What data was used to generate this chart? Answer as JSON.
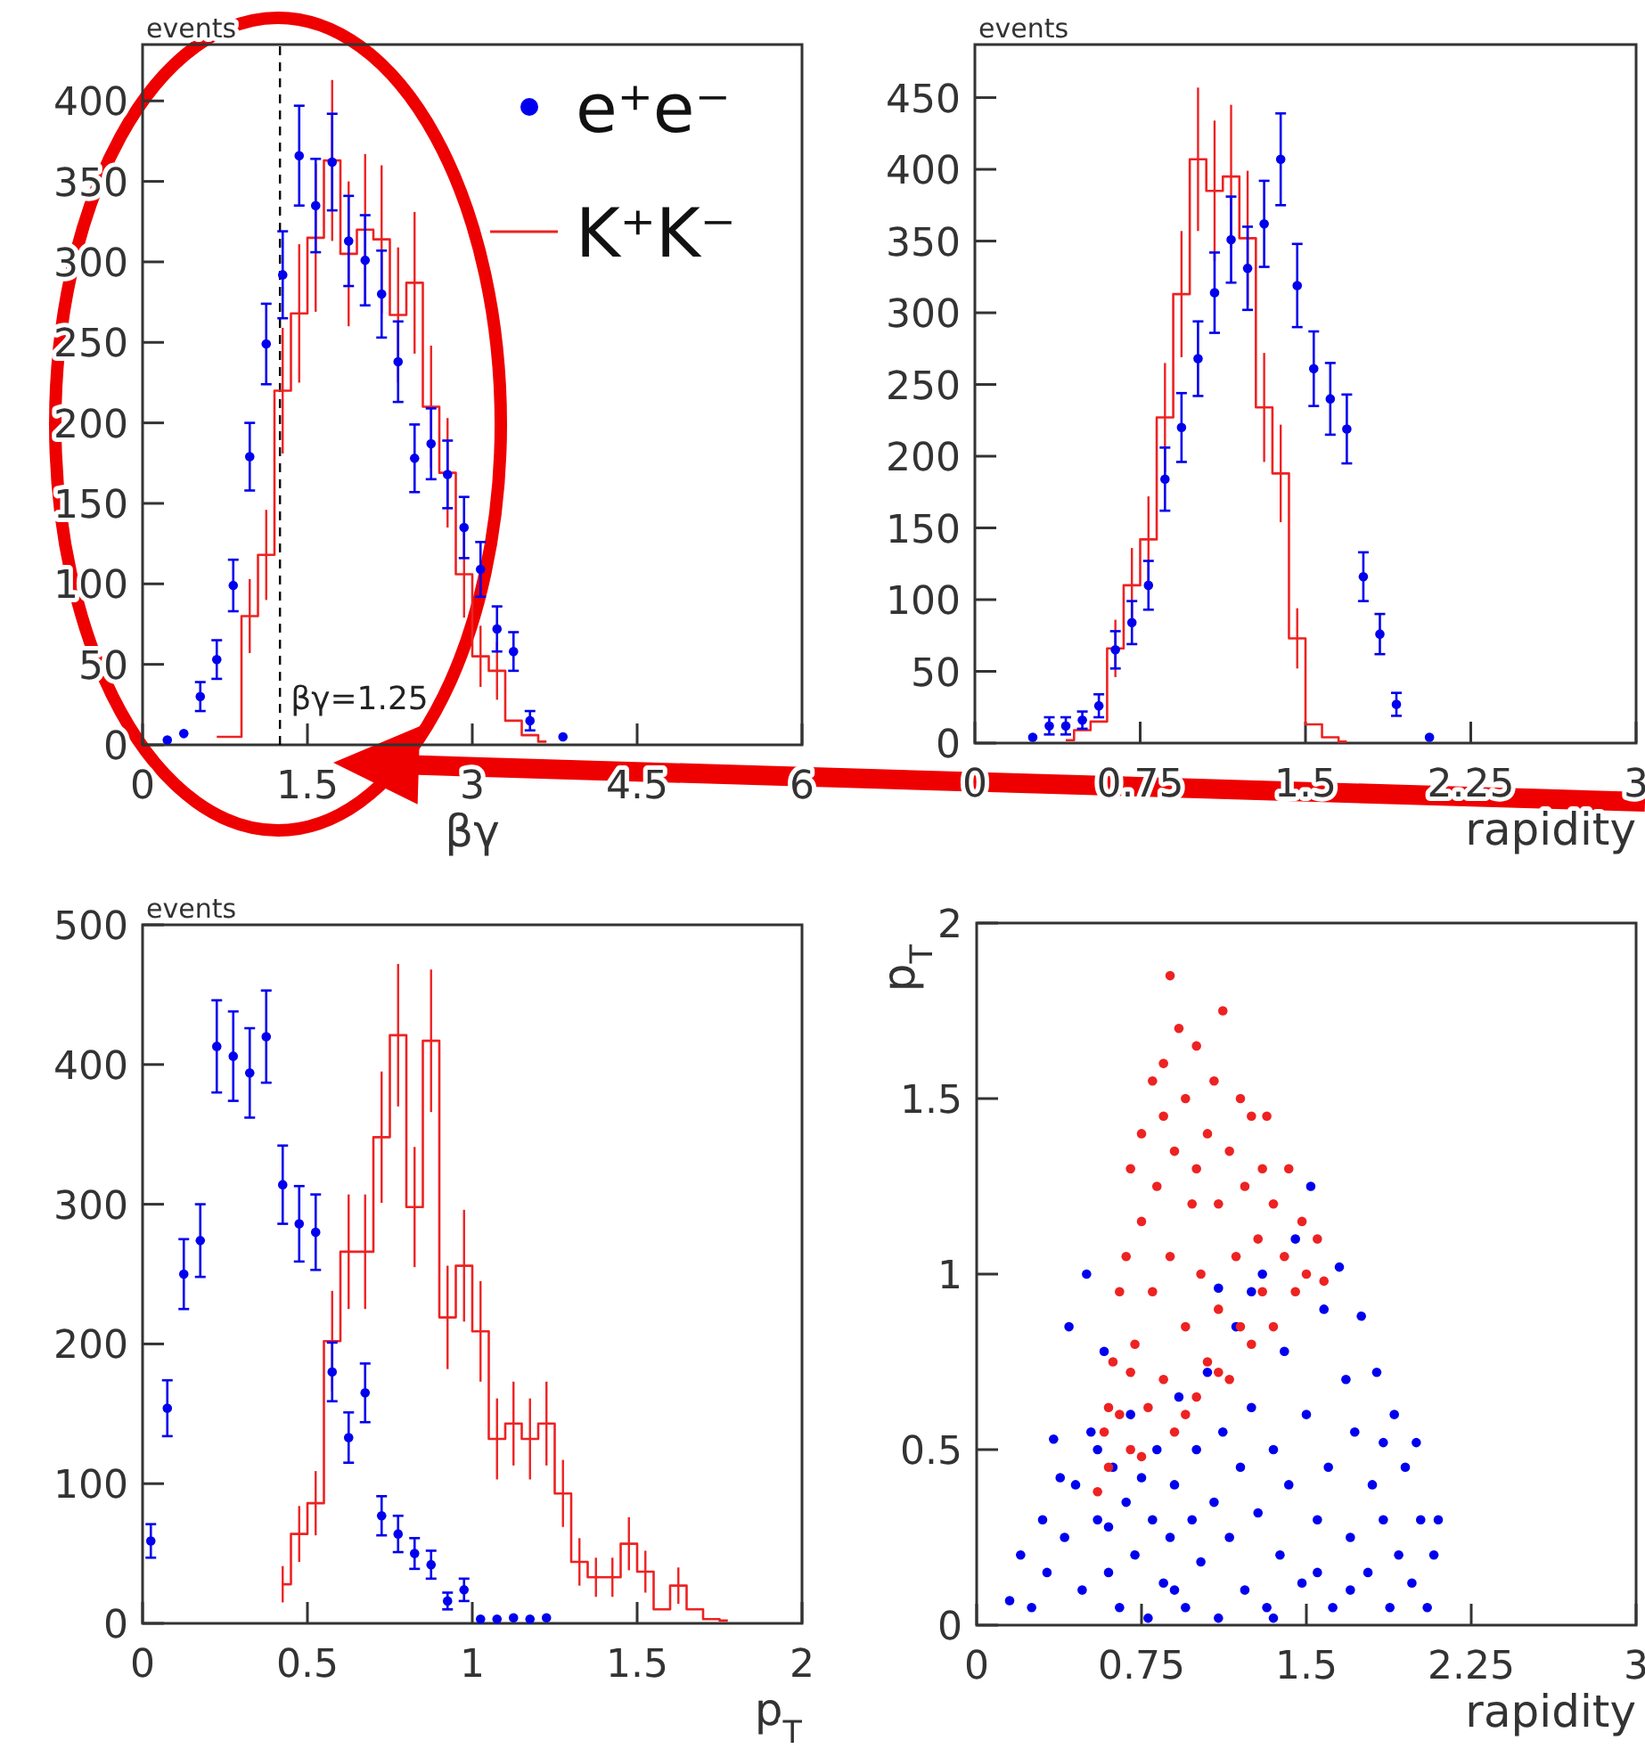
{
  "chart_data": [
    {
      "type": "scatter",
      "xlabel": "βγ",
      "ylabel": "events",
      "xlim": [
        0,
        6
      ],
      "xticks": [
        0,
        1.5,
        3,
        4.5,
        6
      ],
      "ylim": [
        0,
        435
      ],
      "yticks": [
        0,
        50,
        100,
        150,
        200,
        250,
        300,
        350,
        400
      ],
      "legend": "top right",
      "ref_lines": [
        {
          "axis": "x",
          "value": 1.25,
          "label": "βγ=1.25",
          "line_style": "dashed",
          "color": "#000000"
        }
      ],
      "series": [
        {
          "name": "e⁺e⁻",
          "color": "#0000ee",
          "marker": "circle",
          "x": [
            0.225,
            0.375,
            0.525,
            0.675,
            0.825,
            0.975,
            1.125,
            1.275,
            1.425,
            1.575,
            1.725,
            1.875,
            2.025,
            2.175,
            2.325,
            2.475,
            2.625,
            2.775,
            2.925,
            3.075,
            3.225,
            3.375,
            3.525,
            3.825
          ],
          "values": [
            3,
            7,
            30,
            53,
            99,
            179,
            249,
            292,
            366,
            335,
            362,
            313,
            301,
            280,
            238,
            178,
            187,
            168,
            135,
            109,
            72,
            58,
            15,
            5
          ],
          "errors": [
            null,
            null,
            9,
            12,
            16,
            21,
            25,
            27,
            31,
            29,
            30,
            28,
            28,
            27,
            25,
            21,
            22,
            21,
            19,
            17,
            14,
            12,
            6,
            null
          ]
        },
        {
          "name": "K⁺K⁻",
          "color": "#ee2222",
          "type": "step",
          "x": [
            0.675,
            0.825,
            0.975,
            1.125,
            1.275,
            1.425,
            1.575,
            1.725,
            1.875,
            2.025,
            2.175,
            2.325,
            2.475,
            2.625,
            2.775,
            2.925,
            3.075,
            3.225,
            3.375,
            3.525,
            3.675
          ],
          "values": [
            5,
            5,
            80,
            118,
            220,
            268,
            315,
            363,
            305,
            320,
            314,
            267,
            287,
            210,
            169,
            106,
            55,
            46,
            15,
            6,
            2
          ],
          "errors": [
            null,
            null,
            23,
            28,
            39,
            43,
            46,
            50,
            45,
            47,
            46,
            42,
            44,
            38,
            34,
            27,
            19,
            18,
            null,
            null,
            null
          ]
        }
      ]
    },
    {
      "type": "scatter",
      "xlabel": "rapidity",
      "ylabel": "events",
      "xlim": [
        0,
        3
      ],
      "xticks": [
        0,
        0.75,
        1.5,
        2.25,
        3
      ],
      "ylim": [
        0,
        487
      ],
      "yticks": [
        0,
        50,
        100,
        150,
        200,
        250,
        300,
        350,
        400,
        450
      ],
      "series": [
        {
          "color": "#0000ee",
          "marker": "circle",
          "x": [
            0.2625,
            0.3375,
            0.4125,
            0.4875,
            0.5625,
            0.6375,
            0.7125,
            0.7875,
            0.8625,
            0.9375,
            1.0125,
            1.0875,
            1.1625,
            1.2375,
            1.3125,
            1.3875,
            1.4625,
            1.5375,
            1.6125,
            1.6875,
            1.7625,
            1.8375,
            1.9125,
            2.0625
          ],
          "values": [
            4,
            12,
            12,
            16,
            26,
            65,
            84,
            110,
            184,
            220,
            268,
            314,
            351,
            331,
            362,
            407,
            319,
            261,
            240,
            219,
            116,
            76,
            27,
            4
          ],
          "errors": [
            null,
            6,
            6,
            6,
            8,
            13,
            15,
            17,
            22,
            24,
            26,
            28,
            30,
            29,
            30,
            32,
            29,
            26,
            25,
            24,
            17,
            14,
            8,
            null
          ]
        },
        {
          "color": "#ee2222",
          "type": "step",
          "x": [
            0.4125,
            0.4875,
            0.5625,
            0.6375,
            0.7125,
            0.7875,
            0.8625,
            0.9375,
            1.0125,
            1.0875,
            1.1625,
            1.2375,
            1.3125,
            1.3875,
            1.4625,
            1.5375,
            1.6125,
            1.6875
          ],
          "values": [
            2,
            9,
            15,
            66,
            110,
            142,
            227,
            313,
            407,
            385,
            395,
            352,
            234,
            188,
            73,
            13,
            4,
            1
          ],
          "errors": [
            null,
            null,
            null,
            20,
            26,
            30,
            38,
            44,
            50,
            49,
            50,
            47,
            38,
            34,
            21,
            null,
            null,
            null
          ]
        }
      ]
    },
    {
      "type": "scatter",
      "xlabel": "p$_{T}$",
      "ylabel": "events",
      "xlim": [
        0,
        2
      ],
      "xticks": [
        0,
        0.5,
        1,
        1.5,
        2
      ],
      "ylim": [
        0,
        500
      ],
      "yticks": [
        0,
        100,
        200,
        300,
        400,
        500
      ],
      "series": [
        {
          "color": "#0000ee",
          "marker": "circle",
          "x": [
            0.025,
            0.075,
            0.125,
            0.175,
            0.225,
            0.275,
            0.325,
            0.375,
            0.425,
            0.475,
            0.525,
            0.575,
            0.625,
            0.675,
            0.725,
            0.775,
            0.825,
            0.875,
            0.925,
            0.975,
            1.025,
            1.075,
            1.125,
            1.175,
            1.225
          ],
          "values": [
            59,
            154,
            250,
            274,
            413,
            406,
            394,
            420,
            314,
            286,
            280,
            180,
            133,
            165,
            77,
            64,
            50,
            42,
            16,
            24,
            3,
            3,
            4,
            3,
            4
          ],
          "errors": [
            12,
            20,
            25,
            26,
            33,
            32,
            32,
            33,
            28,
            27,
            27,
            21,
            18,
            21,
            14,
            13,
            11,
            10,
            6,
            8,
            null,
            null,
            null,
            null,
            null
          ]
        },
        {
          "color": "#ee2222",
          "type": "step",
          "x": [
            0.425,
            0.475,
            0.525,
            0.575,
            0.625,
            0.675,
            0.725,
            0.775,
            0.825,
            0.875,
            0.925,
            0.975,
            1.025,
            1.075,
            1.125,
            1.175,
            1.225,
            1.275,
            1.325,
            1.375,
            1.425,
            1.475,
            1.525,
            1.575,
            1.625,
            1.675,
            1.725,
            1.775
          ],
          "values": [
            28,
            64,
            86,
            202,
            266,
            266,
            348,
            421,
            298,
            417,
            219,
            256,
            209,
            132,
            143,
            132,
            143,
            93,
            44,
            33,
            33,
            57,
            37,
            10,
            27,
            10,
            3,
            2
          ],
          "errors": [
            13,
            20,
            23,
            36,
            41,
            41,
            47,
            51,
            43,
            51,
            37,
            40,
            36,
            29,
            30,
            29,
            30,
            24,
            17,
            14,
            14,
            19,
            15,
            null,
            13,
            null,
            null,
            null
          ]
        }
      ]
    },
    {
      "type": "scatter",
      "xlabel": "rapidity",
      "ylabel": "p$_{T}$",
      "xlim": [
        0,
        3
      ],
      "xticks": [
        0,
        0.75,
        1.5,
        2.25,
        3
      ],
      "ylim": [
        0,
        2
      ],
      "yticks": [
        0,
        0.5,
        1,
        1.5,
        2
      ],
      "marker": "circle",
      "series": [
        {
          "color": "#0000ee",
          "x": [
            0.15,
            0.2,
            0.25,
            0.3,
            0.32,
            0.35,
            0.4,
            0.42,
            0.45,
            0.48,
            0.5,
            0.52,
            0.55,
            0.58,
            0.6,
            0.62,
            0.65,
            0.68,
            0.7,
            0.72,
            0.75,
            0.78,
            0.8,
            0.82,
            0.85,
            0.88,
            0.9,
            0.92,
            0.95,
            0.98,
            1.0,
            1.02,
            1.05,
            1.08,
            1.1,
            1.12,
            1.15,
            1.18,
            1.2,
            1.22,
            1.25,
            1.28,
            1.3,
            1.32,
            1.35,
            1.38,
            1.4,
            1.42,
            1.45,
            1.48,
            1.5,
            1.52,
            1.55,
            1.58,
            1.6,
            1.62,
            1.65,
            1.68,
            1.7,
            1.72,
            1.75,
            1.78,
            1.8,
            1.82,
            1.85,
            1.88,
            1.9,
            1.92,
            1.95,
            1.98,
            2.0,
            2.02,
            2.05,
            2.08,
            2.1,
            0.38,
            0.55,
            1.1,
            1.25,
            1.55,
            0.9,
            1.7,
            1.35,
            0.6,
            1.85
          ],
          "values": [
            0.07,
            0.2,
            0.05,
            0.3,
            0.15,
            0.53,
            0.25,
            0.85,
            0.4,
            0.1,
            1.0,
            0.55,
            0.3,
            0.78,
            0.15,
            0.45,
            0.05,
            0.35,
            0.6,
            0.2,
            0.42,
            0.02,
            0.3,
            0.5,
            0.12,
            0.25,
            0.4,
            0.65,
            0.05,
            0.3,
            0.5,
            0.18,
            0.72,
            0.35,
            0.02,
            0.55,
            0.25,
            0.85,
            0.45,
            0.1,
            0.62,
            0.32,
            1.0,
            0.05,
            0.5,
            0.2,
            0.78,
            0.4,
            1.1,
            0.12,
            0.6,
            1.25,
            0.3,
            0.9,
            0.45,
            0.05,
            1.02,
            0.7,
            0.25,
            0.55,
            0.88,
            0.15,
            0.4,
            0.72,
            0.3,
            0.05,
            0.6,
            0.2,
            0.45,
            0.12,
            0.52,
            0.3,
            0.05,
            0.2,
            0.3,
            0.42,
            0.5,
            0.96,
            0.95,
            0.15,
            0.1,
            0.1,
            0.02,
            0.28,
            0.52
          ]
        },
        {
          "color": "#ee2222",
          "x": [
            0.55,
            0.58,
            0.6,
            0.62,
            0.65,
            0.65,
            0.68,
            0.7,
            0.7,
            0.72,
            0.75,
            0.75,
            0.78,
            0.8,
            0.8,
            0.82,
            0.85,
            0.85,
            0.88,
            0.88,
            0.9,
            0.9,
            0.92,
            0.95,
            0.95,
            0.98,
            1.0,
            1.0,
            1.02,
            1.05,
            1.05,
            1.08,
            1.1,
            1.1,
            1.12,
            1.15,
            1.15,
            1.18,
            1.2,
            1.2,
            1.22,
            1.25,
            1.25,
            1.28,
            1.3,
            1.3,
            1.32,
            1.35,
            1.35,
            1.4,
            1.42,
            1.45,
            1.48,
            1.5,
            1.55,
            1.58,
            0.6,
            0.75,
            0.95,
            1.1,
            1.0,
            0.85,
            0.7
          ],
          "values": [
            0.38,
            0.55,
            0.45,
            0.75,
            0.6,
            0.95,
            1.05,
            0.5,
            1.3,
            0.8,
            1.15,
            1.4,
            0.62,
            0.95,
            1.55,
            1.25,
            0.7,
            1.6,
            1.85,
            1.05,
            1.35,
            0.55,
            1.7,
            0.85,
            1.5,
            1.2,
            0.65,
            1.65,
            1.0,
            1.4,
            0.75,
            1.55,
            0.9,
            1.2,
            1.75,
            0.7,
            1.35,
            1.05,
            1.5,
            0.85,
            1.25,
            0.8,
            1.45,
            1.1,
            0.95,
            1.3,
            1.45,
            1.2,
            0.85,
            1.05,
            1.3,
            0.95,
            1.15,
            1.0,
            1.1,
            0.98,
            0.62,
            0.48,
            0.6,
            0.72,
            1.3,
            1.45,
            0.72
          ]
        }
      ]
    }
  ]
}
